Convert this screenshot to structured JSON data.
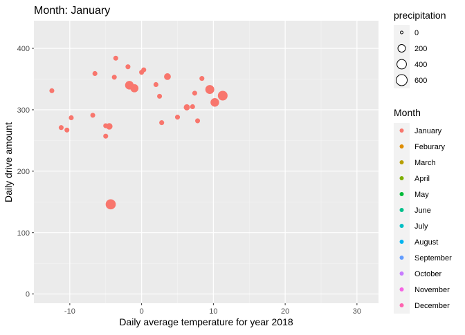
{
  "chart_data": {
    "type": "scatter",
    "title": "Month: January",
    "xlabel": "Daily average temperature for year 2018",
    "ylabel": "Daily drive amount",
    "xlim": [
      -15,
      33
    ],
    "ylim": [
      -15,
      445
    ],
    "x_ticks": [
      -10,
      0,
      10,
      20,
      30
    ],
    "y_ticks": [
      0,
      100,
      200,
      300,
      400
    ],
    "grid": true,
    "size_legend": {
      "title": "precipitation",
      "values": [
        0,
        200,
        400,
        600
      ]
    },
    "color_legend": {
      "title": "Month",
      "entries": [
        {
          "label": "January",
          "color": "#F8766D"
        },
        {
          "label": "Feburary",
          "color": "#DE8C00"
        },
        {
          "label": "March",
          "color": "#B79F00"
        },
        {
          "label": "April",
          "color": "#7CAE00"
        },
        {
          "label": "May",
          "color": "#00BA38"
        },
        {
          "label": "June",
          "color": "#00C08B"
        },
        {
          "label": "July",
          "color": "#00BFC4"
        },
        {
          "label": "August",
          "color": "#00B4F0"
        },
        {
          "label": "September",
          "color": "#619CFF"
        },
        {
          "label": "October",
          "color": "#C77CFF"
        },
        {
          "label": "November",
          "color": "#F564E3"
        },
        {
          "label": "December",
          "color": "#FF64B0"
        }
      ]
    },
    "series": [
      {
        "month": "January",
        "color": "#F8766D",
        "points": [
          {
            "x": -12.5,
            "y": 331,
            "precip": 40
          },
          {
            "x": -11.2,
            "y": 271,
            "precip": 40
          },
          {
            "x": -10.4,
            "y": 267,
            "precip": 40
          },
          {
            "x": -9.8,
            "y": 287,
            "precip": 40
          },
          {
            "x": -6.8,
            "y": 291,
            "precip": 40
          },
          {
            "x": -6.5,
            "y": 359,
            "precip": 40
          },
          {
            "x": -5.0,
            "y": 274,
            "precip": 40
          },
          {
            "x": -5.0,
            "y": 257,
            "precip": 40
          },
          {
            "x": -4.5,
            "y": 273,
            "precip": 120
          },
          {
            "x": -4.3,
            "y": 146,
            "precip": 470
          },
          {
            "x": -3.8,
            "y": 353,
            "precip": 40
          },
          {
            "x": -3.6,
            "y": 384,
            "precip": 40
          },
          {
            "x": -1.9,
            "y": 370,
            "precip": 40
          },
          {
            "x": -1.7,
            "y": 340,
            "precip": 300
          },
          {
            "x": -1.0,
            "y": 335,
            "precip": 250
          },
          {
            "x": 0.0,
            "y": 361,
            "precip": 40
          },
          {
            "x": 0.3,
            "y": 365,
            "precip": 40
          },
          {
            "x": 2.0,
            "y": 341,
            "precip": 40
          },
          {
            "x": 2.5,
            "y": 322,
            "precip": 40
          },
          {
            "x": 2.8,
            "y": 279,
            "precip": 40
          },
          {
            "x": 3.6,
            "y": 354,
            "precip": 140
          },
          {
            "x": 5.0,
            "y": 288,
            "precip": 40
          },
          {
            "x": 6.3,
            "y": 304,
            "precip": 100
          },
          {
            "x": 7.1,
            "y": 305,
            "precip": 40
          },
          {
            "x": 7.4,
            "y": 327,
            "precip": 40
          },
          {
            "x": 7.8,
            "y": 282,
            "precip": 40
          },
          {
            "x": 8.4,
            "y": 351,
            "precip": 40
          },
          {
            "x": 9.5,
            "y": 333,
            "precip": 330
          },
          {
            "x": 10.2,
            "y": 312,
            "precip": 300
          },
          {
            "x": 11.3,
            "y": 323,
            "precip": 420
          }
        ]
      }
    ]
  }
}
